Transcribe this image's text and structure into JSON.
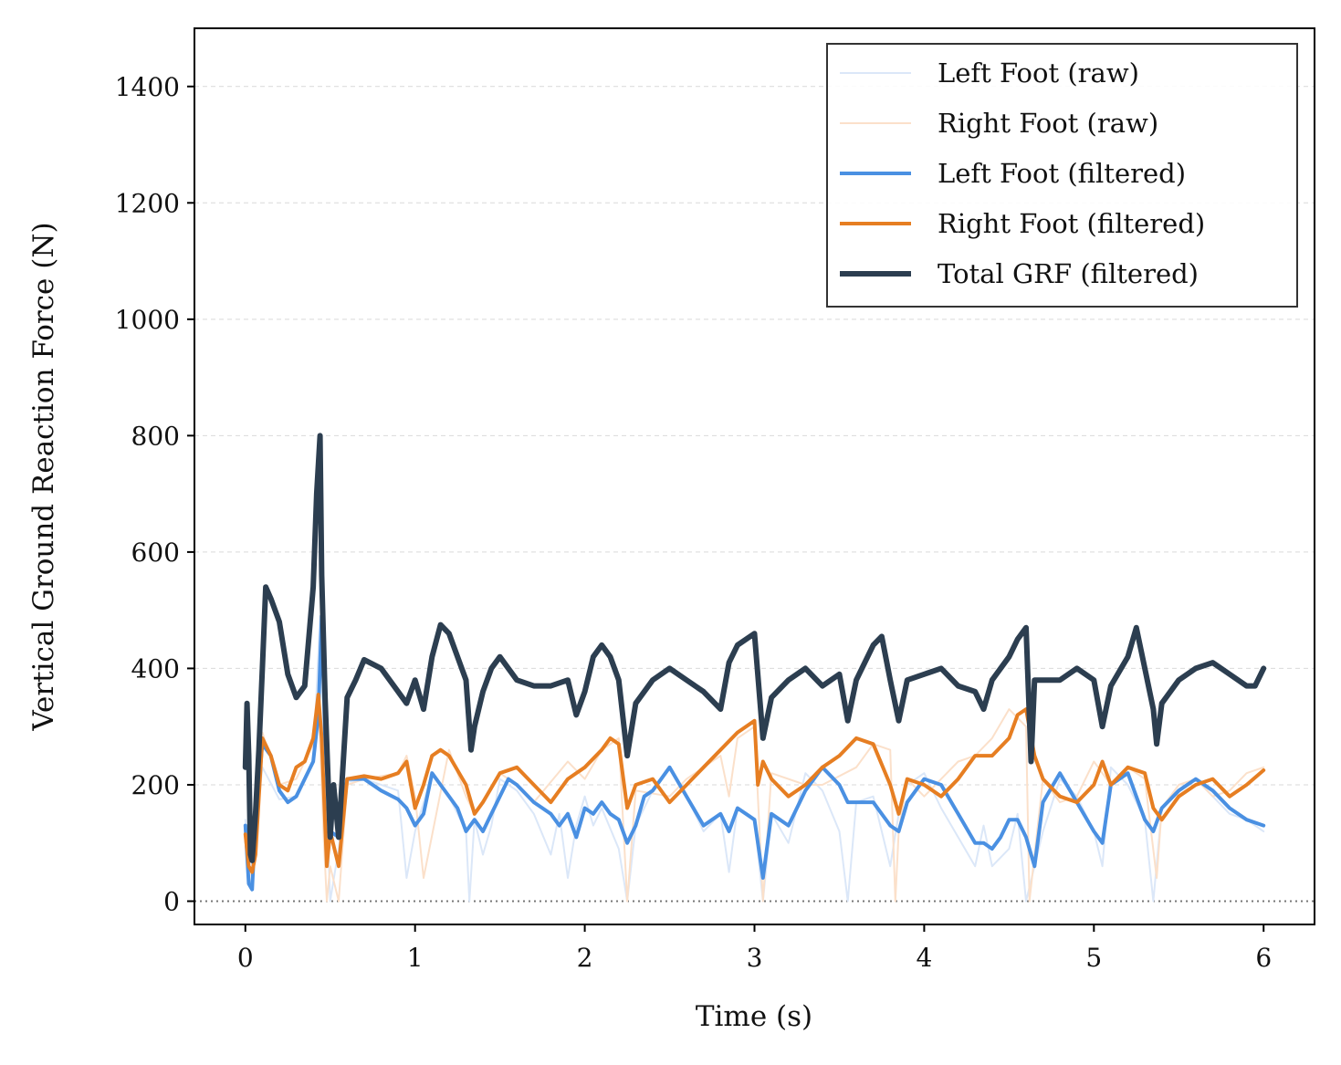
{
  "chart_data": {
    "type": "line",
    "title": "",
    "xlabel": "Time (s)",
    "ylabel": "Vertical Ground Reaction Force (N)",
    "xlim": [
      -0.3,
      6.3
    ],
    "ylim": [
      -40,
      1500
    ],
    "xticks": [
      0,
      1,
      2,
      3,
      4,
      5,
      6
    ],
    "yticks": [
      0,
      200,
      400,
      600,
      800,
      1000,
      1200,
      1400
    ],
    "grid": "horizontal-dashed",
    "zero_reference_line": "dotted",
    "legend_position": "top-right",
    "legend": [
      "Left Foot (raw)",
      "Right Foot (raw)",
      "Left Foot (filtered)",
      "Right Foot (filtered)",
      "Total GRF (filtered)"
    ],
    "series": [
      {
        "name": "Left Foot (raw)",
        "color": "#dbe7f8",
        "style": "thin",
        "x": [
          0.0,
          0.02,
          0.04,
          0.06,
          0.1,
          0.2,
          0.3,
          0.4,
          0.44,
          0.46,
          0.5,
          0.55,
          0.6,
          0.7,
          0.9,
          0.95,
          1.0,
          1.1,
          1.2,
          1.3,
          1.32,
          1.35,
          1.4,
          1.45,
          1.5,
          1.6,
          1.7,
          1.8,
          1.85,
          1.9,
          1.95,
          2.0,
          2.05,
          2.1,
          2.2,
          2.25,
          2.3,
          2.4,
          2.5,
          2.6,
          2.7,
          2.8,
          2.85,
          2.9,
          3.0,
          3.05,
          3.1,
          3.2,
          3.3,
          3.4,
          3.5,
          3.55,
          3.6,
          3.7,
          3.8,
          3.85,
          3.9,
          4.0,
          4.1,
          4.2,
          4.3,
          4.35,
          4.4,
          4.5,
          4.55,
          4.6,
          4.7,
          4.8,
          4.9,
          5.0,
          5.05,
          5.1,
          5.2,
          5.3,
          5.35,
          5.4,
          5.5,
          5.6,
          5.7,
          5.8,
          5.9,
          6.0
        ],
        "y": [
          140,
          40,
          20,
          120,
          230,
          175,
          180,
          240,
          490,
          330,
          0,
          90,
          205,
          210,
          190,
          40,
          120,
          220,
          180,
          120,
          0,
          140,
          80,
          130,
          210,
          190,
          150,
          80,
          150,
          40,
          130,
          180,
          130,
          160,
          90,
          0,
          130,
          190,
          230,
          180,
          120,
          150,
          50,
          160,
          140,
          0,
          150,
          100,
          220,
          190,
          120,
          0,
          170,
          180,
          60,
          150,
          200,
          220,
          160,
          110,
          60,
          130,
          60,
          90,
          150,
          0,
          120,
          210,
          180,
          120,
          60,
          230,
          200,
          140,
          0,
          160,
          190,
          210,
          180,
          150,
          140,
          120
        ]
      },
      {
        "name": "Right Foot (raw)",
        "color": "#fbe0ca",
        "style": "thin",
        "x": [
          0.0,
          0.02,
          0.04,
          0.1,
          0.2,
          0.3,
          0.4,
          0.43,
          0.46,
          0.48,
          0.5,
          0.55,
          0.6,
          0.7,
          0.9,
          0.95,
          1.0,
          1.05,
          1.2,
          1.3,
          1.35,
          1.5,
          1.6,
          1.7,
          1.9,
          2.0,
          2.1,
          2.2,
          2.25,
          2.3,
          2.5,
          2.6,
          2.7,
          2.8,
          2.85,
          2.9,
          3.0,
          3.05,
          3.1,
          3.3,
          3.4,
          3.6,
          3.7,
          3.8,
          3.83,
          3.85,
          3.9,
          4.0,
          4.1,
          4.2,
          4.3,
          4.4,
          4.5,
          4.6,
          4.62,
          4.7,
          4.8,
          4.9,
          5.0,
          5.1,
          5.2,
          5.3,
          5.37,
          5.4,
          5.5,
          5.6,
          5.7,
          5.8,
          5.9,
          6.0
        ],
        "y": [
          110,
          60,
          40,
          290,
          200,
          210,
          270,
          360,
          120,
          0,
          60,
          0,
          200,
          210,
          220,
          250,
          180,
          40,
          260,
          180,
          150,
          220,
          200,
          170,
          240,
          210,
          260,
          280,
          0,
          190,
          180,
          210,
          230,
          250,
          180,
          280,
          300,
          0,
          220,
          200,
          200,
          230,
          270,
          260,
          0,
          120,
          210,
          180,
          210,
          240,
          250,
          280,
          330,
          300,
          0,
          210,
          170,
          180,
          240,
          200,
          230,
          210,
          40,
          160,
          200,
          210,
          180,
          190,
          220,
          230
        ]
      },
      {
        "name": "Left Foot (filtered)",
        "color": "#4a90e2",
        "style": "medium",
        "x": [
          0.0,
          0.02,
          0.04,
          0.06,
          0.1,
          0.15,
          0.2,
          0.25,
          0.3,
          0.35,
          0.4,
          0.43,
          0.45,
          0.47,
          0.5,
          0.55,
          0.6,
          0.7,
          0.8,
          0.9,
          0.95,
          1.0,
          1.05,
          1.1,
          1.15,
          1.2,
          1.25,
          1.3,
          1.35,
          1.4,
          1.45,
          1.5,
          1.55,
          1.6,
          1.7,
          1.8,
          1.85,
          1.9,
          1.95,
          2.0,
          2.05,
          2.1,
          2.15,
          2.2,
          2.25,
          2.3,
          2.35,
          2.4,
          2.45,
          2.5,
          2.6,
          2.7,
          2.8,
          2.85,
          2.9,
          2.95,
          3.0,
          3.05,
          3.1,
          3.2,
          3.3,
          3.4,
          3.5,
          3.55,
          3.6,
          3.7,
          3.8,
          3.85,
          3.9,
          4.0,
          4.1,
          4.2,
          4.3,
          4.35,
          4.4,
          4.45,
          4.5,
          4.55,
          4.6,
          4.65,
          4.7,
          4.8,
          4.9,
          5.0,
          5.05,
          5.1,
          5.2,
          5.3,
          5.35,
          5.4,
          5.5,
          5.6,
          5.7,
          5.8,
          5.9,
          6.0
        ],
        "y": [
          130,
          30,
          20,
          140,
          270,
          250,
          190,
          170,
          180,
          210,
          240,
          320,
          490,
          280,
          120,
          110,
          210,
          210,
          190,
          175,
          160,
          130,
          150,
          220,
          200,
          180,
          160,
          120,
          140,
          120,
          150,
          180,
          210,
          200,
          170,
          150,
          130,
          150,
          110,
          160,
          150,
          170,
          150,
          140,
          100,
          130,
          180,
          190,
          210,
          230,
          180,
          130,
          150,
          120,
          160,
          150,
          140,
          40,
          150,
          130,
          190,
          230,
          200,
          170,
          170,
          170,
          130,
          120,
          170,
          210,
          200,
          150,
          100,
          100,
          90,
          110,
          140,
          140,
          110,
          60,
          170,
          220,
          170,
          120,
          100,
          200,
          220,
          140,
          120,
          160,
          190,
          210,
          190,
          160,
          140,
          130
        ]
      },
      {
        "name": "Right Foot (filtered)",
        "color": "#e67e22",
        "style": "medium",
        "x": [
          0.0,
          0.02,
          0.04,
          0.06,
          0.1,
          0.15,
          0.2,
          0.25,
          0.3,
          0.35,
          0.4,
          0.43,
          0.45,
          0.48,
          0.5,
          0.55,
          0.6,
          0.7,
          0.8,
          0.9,
          0.95,
          1.0,
          1.05,
          1.1,
          1.15,
          1.2,
          1.3,
          1.35,
          1.4,
          1.5,
          1.6,
          1.7,
          1.8,
          1.9,
          2.0,
          2.1,
          2.15,
          2.2,
          2.25,
          2.3,
          2.4,
          2.5,
          2.6,
          2.7,
          2.8,
          2.9,
          3.0,
          3.02,
          3.05,
          3.1,
          3.2,
          3.3,
          3.4,
          3.5,
          3.6,
          3.7,
          3.8,
          3.85,
          3.9,
          4.0,
          4.1,
          4.2,
          4.3,
          4.4,
          4.5,
          4.55,
          4.6,
          4.65,
          4.7,
          4.8,
          4.9,
          5.0,
          5.05,
          5.1,
          5.2,
          5.3,
          5.35,
          5.4,
          5.5,
          5.6,
          5.7,
          5.8,
          5.9,
          6.0
        ],
        "y": [
          115,
          60,
          50,
          80,
          280,
          250,
          200,
          190,
          230,
          240,
          280,
          355,
          280,
          60,
          120,
          60,
          210,
          215,
          210,
          220,
          240,
          160,
          200,
          250,
          260,
          250,
          200,
          150,
          170,
          220,
          230,
          200,
          170,
          210,
          230,
          260,
          280,
          270,
          160,
          200,
          210,
          170,
          200,
          230,
          260,
          290,
          310,
          200,
          240,
          210,
          180,
          200,
          230,
          250,
          280,
          270,
          200,
          150,
          210,
          200,
          180,
          210,
          250,
          250,
          280,
          320,
          330,
          250,
          210,
          180,
          170,
          200,
          240,
          200,
          230,
          220,
          160,
          140,
          180,
          200,
          210,
          180,
          200,
          225
        ]
      },
      {
        "name": "Total GRF (filtered)",
        "color": "#2c3e50",
        "style": "thick",
        "x": [
          0.0,
          0.01,
          0.02,
          0.03,
          0.04,
          0.06,
          0.08,
          0.1,
          0.12,
          0.15,
          0.2,
          0.25,
          0.3,
          0.35,
          0.4,
          0.42,
          0.44,
          0.45,
          0.47,
          0.5,
          0.52,
          0.55,
          0.6,
          0.65,
          0.7,
          0.8,
          0.9,
          0.95,
          1.0,
          1.05,
          1.1,
          1.15,
          1.2,
          1.3,
          1.33,
          1.35,
          1.4,
          1.45,
          1.5,
          1.6,
          1.7,
          1.8,
          1.9,
          1.95,
          2.0,
          2.05,
          2.1,
          2.15,
          2.2,
          2.25,
          2.3,
          2.4,
          2.5,
          2.6,
          2.7,
          2.8,
          2.85,
          2.9,
          3.0,
          3.05,
          3.1,
          3.2,
          3.3,
          3.4,
          3.5,
          3.55,
          3.6,
          3.65,
          3.7,
          3.75,
          3.8,
          3.85,
          3.9,
          4.0,
          4.1,
          4.2,
          4.3,
          4.35,
          4.4,
          4.5,
          4.55,
          4.6,
          4.63,
          4.65,
          4.7,
          4.8,
          4.9,
          5.0,
          5.05,
          5.1,
          5.2,
          5.25,
          5.3,
          5.35,
          5.37,
          5.4,
          5.5,
          5.6,
          5.7,
          5.8,
          5.9,
          5.95,
          6.0
        ],
        "y": [
          230,
          340,
          250,
          80,
          70,
          150,
          260,
          400,
          540,
          520,
          480,
          390,
          350,
          370,
          540,
          700,
          800,
          560,
          350,
          110,
          200,
          110,
          350,
          380,
          415,
          400,
          360,
          340,
          380,
          330,
          420,
          475,
          460,
          380,
          260,
          300,
          360,
          400,
          420,
          380,
          370,
          370,
          380,
          320,
          360,
          420,
          440,
          420,
          380,
          250,
          340,
          380,
          400,
          380,
          360,
          330,
          410,
          440,
          460,
          280,
          350,
          380,
          400,
          370,
          390,
          310,
          380,
          410,
          440,
          455,
          380,
          310,
          380,
          390,
          400,
          370,
          360,
          330,
          380,
          420,
          450,
          470,
          240,
          380,
          380,
          380,
          400,
          380,
          300,
          370,
          420,
          470,
          400,
          330,
          270,
          340,
          380,
          400,
          410,
          390,
          370,
          370,
          400
        ]
      }
    ]
  }
}
